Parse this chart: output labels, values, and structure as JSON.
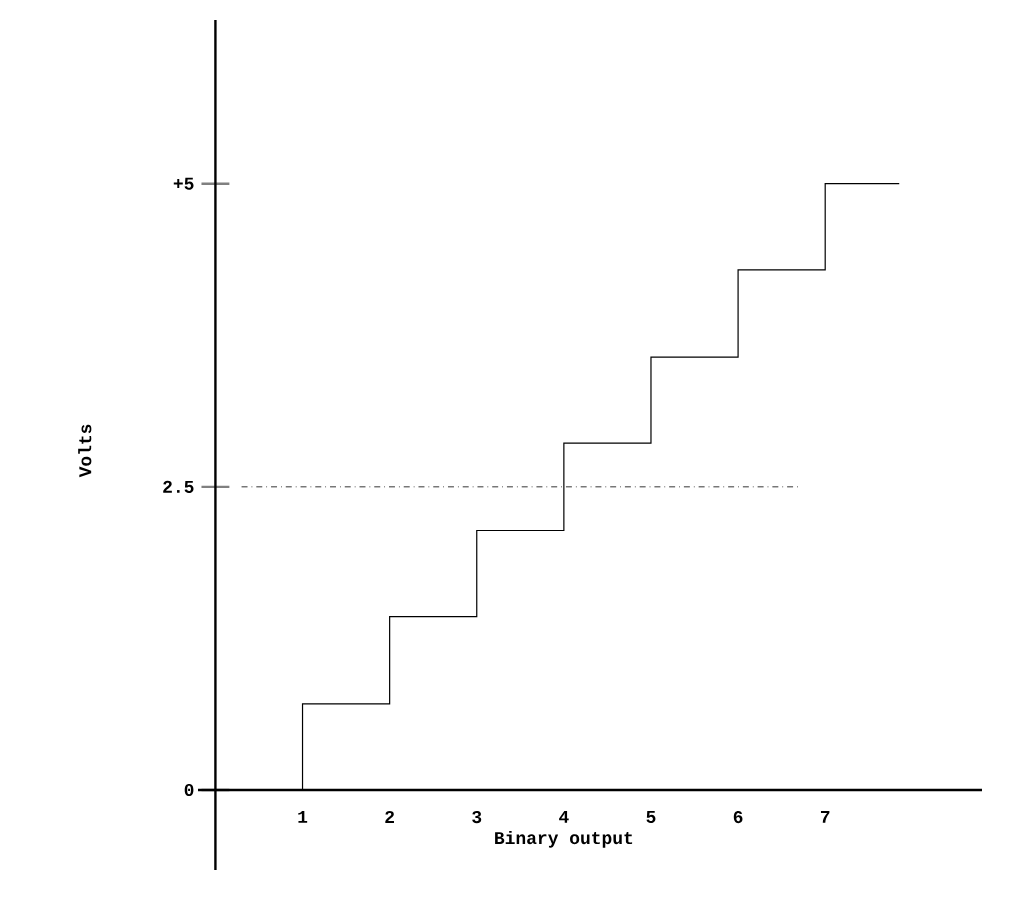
{
  "chart_data": {
    "type": "step",
    "xlabel": "Binary output",
    "ylabel": "Volts",
    "x": [
      1,
      1,
      2,
      3,
      4,
      5,
      6,
      7,
      7.85
    ],
    "values": [
      0,
      0.71,
      1.43,
      2.14,
      2.86,
      3.57,
      4.29,
      5,
      5
    ],
    "color": "#000000",
    "xlim": [
      -0.2,
      8.8
    ],
    "ylim": [
      -0.66,
      6.35
    ],
    "xticks": [
      1,
      2,
      3,
      4,
      5,
      6,
      7
    ],
    "yticks": [
      0,
      2.5,
      {
        "value": 5,
        "label": "+5"
      }
    ],
    "ref_lines": [
      {
        "axis": "y",
        "value": 2.5,
        "line_style": "dashdotted"
      }
    ],
    "grid": false
  }
}
